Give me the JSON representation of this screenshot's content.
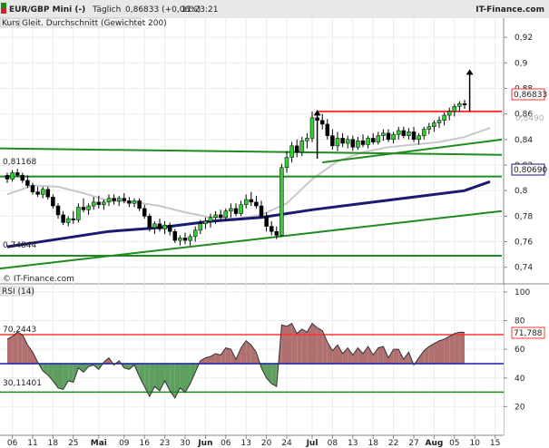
{
  "header": {
    "title": "EUR/GBP Mini (-)",
    "interval": "Täglich",
    "quote": "0,86833 (+0,06%)",
    "time": "11:23:21",
    "brand": "IT-Finance.com"
  },
  "legend": {
    "kurs": "Kurs",
    "indicator": "Gleit. Durchschnitt (Gewichtet 200)"
  },
  "watermark": "© IT-Finance.com",
  "price_panel": {
    "yticks": [
      "0,92",
      "0,9",
      "0,88",
      "0,86",
      "0,84",
      "0,82",
      "0,8",
      "0,78",
      "0,76",
      "0,74"
    ],
    "yvals": [
      0.92,
      0.9,
      0.88,
      0.86,
      0.84,
      0.82,
      0.8,
      0.78,
      0.76,
      0.74
    ],
    "last_price_badge": "0,86833",
    "wma_badge": "0,80690",
    "gray_badge": "0,8490",
    "level_high_label": "0,81168",
    "level_low_label": "0,74844"
  },
  "rsi_panel": {
    "title": "RSI (14)",
    "yticks": [
      "100",
      "80",
      "60",
      "40",
      "20"
    ],
    "yvals": [
      100,
      80,
      60,
      40,
      20
    ],
    "badge": "71,788",
    "upper_label": "70,2443",
    "lower_label": "30,11401"
  },
  "xaxis": {
    "labels": [
      {
        "i": 1,
        "t": "06"
      },
      {
        "i": 5,
        "t": "11"
      },
      {
        "i": 9,
        "t": "18"
      },
      {
        "i": 13,
        "t": "25"
      },
      {
        "i": 18,
        "t": "Mai",
        "bold": true
      },
      {
        "i": 23,
        "t": "09"
      },
      {
        "i": 27,
        "t": "16"
      },
      {
        "i": 31,
        "t": "23"
      },
      {
        "i": 35,
        "t": "30"
      },
      {
        "i": 39,
        "t": "Jun",
        "bold": true
      },
      {
        "i": 43,
        "t": "06"
      },
      {
        "i": 47,
        "t": "13"
      },
      {
        "i": 51,
        "t": "20"
      },
      {
        "i": 55,
        "t": "24"
      },
      {
        "i": 60,
        "t": "Jul",
        "bold": true
      },
      {
        "i": 64,
        "t": "08"
      },
      {
        "i": 68,
        "t": "13"
      },
      {
        "i": 72,
        "t": "18"
      },
      {
        "i": 76,
        "t": "22"
      },
      {
        "i": 80,
        "t": "27"
      },
      {
        "i": 84,
        "t": "Aug",
        "bold": true
      },
      {
        "i": 88,
        "t": "05"
      },
      {
        "i": 92,
        "t": "10"
      },
      {
        "i": 96,
        "t": "15"
      }
    ]
  },
  "colors": {
    "up": "#33cc33",
    "down": "#000000",
    "wma": "#1a1a6e",
    "sma": "#c8c8c8",
    "green_line": "#1f8a1f",
    "red_line": "#ff3333",
    "rsi_line": "#333333",
    "rsi_over": "#b07070",
    "rsi_under": "#5e9e5e",
    "blue_level": "#1a1aaa"
  },
  "chart_data": [
    {
      "type": "candlestick",
      "name": "EUR/GBP Mini (-)",
      "ylim": [
        0.727,
        0.935
      ],
      "ohlc": [
        [
          0.812,
          0.814,
          0.806,
          0.809
        ],
        [
          0.809,
          0.816,
          0.807,
          0.814
        ],
        [
          0.814,
          0.817,
          0.811,
          0.812
        ],
        [
          0.812,
          0.814,
          0.806,
          0.808
        ],
        [
          0.808,
          0.812,
          0.802,
          0.804
        ],
        [
          0.804,
          0.806,
          0.797,
          0.799
        ],
        [
          0.799,
          0.803,
          0.795,
          0.797
        ],
        [
          0.797,
          0.803,
          0.794,
          0.801
        ],
        [
          0.801,
          0.803,
          0.793,
          0.795
        ],
        [
          0.795,
          0.797,
          0.786,
          0.788
        ],
        [
          0.788,
          0.79,
          0.778,
          0.781
        ],
        [
          0.781,
          0.784,
          0.773,
          0.775
        ],
        [
          0.775,
          0.78,
          0.772,
          0.778
        ],
        [
          0.778,
          0.784,
          0.774,
          0.777
        ],
        [
          0.777,
          0.79,
          0.775,
          0.787
        ],
        [
          0.787,
          0.794,
          0.783,
          0.785
        ],
        [
          0.785,
          0.79,
          0.781,
          0.788
        ],
        [
          0.788,
          0.795,
          0.785,
          0.791
        ],
        [
          0.791,
          0.796,
          0.786,
          0.789
        ],
        [
          0.789,
          0.793,
          0.785,
          0.791
        ],
        [
          0.791,
          0.797,
          0.788,
          0.794
        ],
        [
          0.794,
          0.797,
          0.789,
          0.792
        ],
        [
          0.792,
          0.796,
          0.788,
          0.794
        ],
        [
          0.794,
          0.798,
          0.79,
          0.792
        ],
        [
          0.792,
          0.795,
          0.787,
          0.79
        ],
        [
          0.79,
          0.794,
          0.787,
          0.792
        ],
        [
          0.792,
          0.794,
          0.784,
          0.786
        ],
        [
          0.786,
          0.789,
          0.778,
          0.78
        ],
        [
          0.78,
          0.782,
          0.768,
          0.771
        ],
        [
          0.771,
          0.776,
          0.766,
          0.774
        ],
        [
          0.774,
          0.778,
          0.768,
          0.77
        ],
        [
          0.77,
          0.776,
          0.766,
          0.773
        ],
        [
          0.773,
          0.775,
          0.765,
          0.768
        ],
        [
          0.768,
          0.77,
          0.759,
          0.761
        ],
        [
          0.761,
          0.765,
          0.757,
          0.763
        ],
        [
          0.763,
          0.767,
          0.758,
          0.761
        ],
        [
          0.761,
          0.766,
          0.757,
          0.764
        ],
        [
          0.764,
          0.772,
          0.76,
          0.769
        ],
        [
          0.769,
          0.777,
          0.766,
          0.774
        ],
        [
          0.774,
          0.779,
          0.77,
          0.776
        ],
        [
          0.776,
          0.782,
          0.771,
          0.779
        ],
        [
          0.779,
          0.784,
          0.774,
          0.781
        ],
        [
          0.781,
          0.785,
          0.776,
          0.779
        ],
        [
          0.779,
          0.786,
          0.776,
          0.784
        ],
        [
          0.784,
          0.79,
          0.779,
          0.786
        ],
        [
          0.786,
          0.79,
          0.78,
          0.782
        ],
        [
          0.782,
          0.792,
          0.78,
          0.789
        ],
        [
          0.789,
          0.797,
          0.786,
          0.793
        ],
        [
          0.793,
          0.799,
          0.788,
          0.791
        ],
        [
          0.791,
          0.796,
          0.786,
          0.788
        ],
        [
          0.788,
          0.792,
          0.778,
          0.78
        ],
        [
          0.78,
          0.783,
          0.768,
          0.772
        ],
        [
          0.772,
          0.776,
          0.765,
          0.768
        ],
        [
          0.768,
          0.772,
          0.762,
          0.765
        ],
        [
          0.765,
          0.821,
          0.764,
          0.818
        ],
        [
          0.818,
          0.831,
          0.814,
          0.826
        ],
        [
          0.826,
          0.838,
          0.822,
          0.835
        ],
        [
          0.835,
          0.84,
          0.826,
          0.83
        ],
        [
          0.83,
          0.842,
          0.827,
          0.839
        ],
        [
          0.839,
          0.845,
          0.833,
          0.841
        ],
        [
          0.841,
          0.862,
          0.838,
          0.857
        ],
        [
          0.857,
          0.863,
          0.851,
          0.855
        ],
        [
          0.855,
          0.86,
          0.848,
          0.852
        ],
        [
          0.852,
          0.856,
          0.84,
          0.843
        ],
        [
          0.843,
          0.848,
          0.832,
          0.835
        ],
        [
          0.835,
          0.846,
          0.831,
          0.841
        ],
        [
          0.841,
          0.845,
          0.834,
          0.837
        ],
        [
          0.837,
          0.843,
          0.833,
          0.84
        ],
        [
          0.84,
          0.843,
          0.831,
          0.834
        ],
        [
          0.834,
          0.842,
          0.832,
          0.839
        ],
        [
          0.839,
          0.844,
          0.834,
          0.836
        ],
        [
          0.836,
          0.843,
          0.833,
          0.841
        ],
        [
          0.841,
          0.845,
          0.836,
          0.838
        ],
        [
          0.838,
          0.846,
          0.836,
          0.843
        ],
        [
          0.843,
          0.848,
          0.839,
          0.845
        ],
        [
          0.845,
          0.848,
          0.838,
          0.84
        ],
        [
          0.84,
          0.846,
          0.837,
          0.844
        ],
        [
          0.844,
          0.85,
          0.84,
          0.847
        ],
        [
          0.847,
          0.85,
          0.841,
          0.843
        ],
        [
          0.843,
          0.849,
          0.84,
          0.846
        ],
        [
          0.846,
          0.85,
          0.838,
          0.84
        ],
        [
          0.84,
          0.845,
          0.836,
          0.843
        ],
        [
          0.843,
          0.85,
          0.84,
          0.848
        ],
        [
          0.848,
          0.853,
          0.844,
          0.85
        ],
        [
          0.85,
          0.855,
          0.846,
          0.853
        ],
        [
          0.853,
          0.858,
          0.849,
          0.855
        ],
        [
          0.855,
          0.861,
          0.851,
          0.859
        ],
        [
          0.859,
          0.865,
          0.855,
          0.862
        ],
        [
          0.862,
          0.868,
          0.858,
          0.866
        ],
        [
          0.866,
          0.87,
          0.862,
          0.868
        ],
        [
          0.868,
          0.871,
          0.864,
          0.867
        ]
      ],
      "weighted_ma_200": {
        "x": [
          0,
          10,
          20,
          30,
          40,
          50,
          60,
          70,
          80,
          90,
          95
        ],
        "y": [
          0.756,
          0.762,
          0.768,
          0.771,
          0.776,
          0.779,
          0.785,
          0.79,
          0.795,
          0.8,
          0.807
        ]
      },
      "gray_ma": {
        "x": [
          0,
          5,
          10,
          15,
          20,
          25,
          30,
          35,
          40,
          45,
          50,
          55,
          60,
          65,
          70,
          75,
          80,
          85,
          90,
          95
        ],
        "y": [
          0.797,
          0.804,
          0.803,
          0.798,
          0.792,
          0.791,
          0.788,
          0.783,
          0.779,
          0.778,
          0.781,
          0.79,
          0.809,
          0.823,
          0.83,
          0.834,
          0.836,
          0.838,
          0.842,
          0.849
        ]
      },
      "lines": [
        {
          "color": "green",
          "from": [
            -2,
            0.833
          ],
          "to": [
            98,
            0.828
          ]
        },
        {
          "color": "green",
          "from": [
            -2,
            0.811
          ],
          "to": [
            98,
            0.811
          ]
        },
        {
          "color": "green",
          "from": [
            -2,
            0.749
          ],
          "to": [
            98,
            0.749
          ]
        },
        {
          "color": "green",
          "from": [
            -2,
            0.739
          ],
          "to": [
            98,
            0.784
          ]
        },
        {
          "color": "green",
          "from": [
            62,
            0.822
          ],
          "to": [
            98,
            0.84
          ]
        },
        {
          "color": "red",
          "from": [
            61,
            0.862
          ],
          "to": [
            98,
            0.862
          ]
        }
      ],
      "arrows": [
        {
          "from": [
            61,
            0.825
          ],
          "to": [
            61,
            0.863
          ]
        },
        {
          "from": [
            91,
            0.862
          ],
          "to": [
            91,
            0.895
          ]
        }
      ]
    },
    {
      "type": "line",
      "name": "RSI (14)",
      "ylim": [
        0,
        105
      ],
      "levels": [
        70.2443,
        30.11401,
        50
      ],
      "values": [
        67,
        69,
        72,
        70,
        63,
        58,
        51,
        45,
        42,
        38,
        33,
        32,
        38,
        37,
        47,
        44,
        48,
        49,
        46,
        51,
        54,
        49,
        52,
        47,
        46,
        49,
        41,
        34,
        27,
        34,
        31,
        38,
        31,
        26,
        33,
        30,
        36,
        44,
        52,
        54,
        55,
        57,
        56,
        61,
        60,
        53,
        61,
        66,
        63,
        58,
        47,
        40,
        36,
        34,
        77,
        76,
        78,
        71,
        74,
        72,
        78,
        75,
        73,
        65,
        59,
        63,
        57,
        61,
        56,
        61,
        57,
        62,
        56,
        61,
        62,
        54,
        60,
        60,
        53,
        58,
        49,
        54,
        59,
        62,
        64,
        66,
        67,
        69,
        71,
        72,
        71.8
      ]
    }
  ]
}
